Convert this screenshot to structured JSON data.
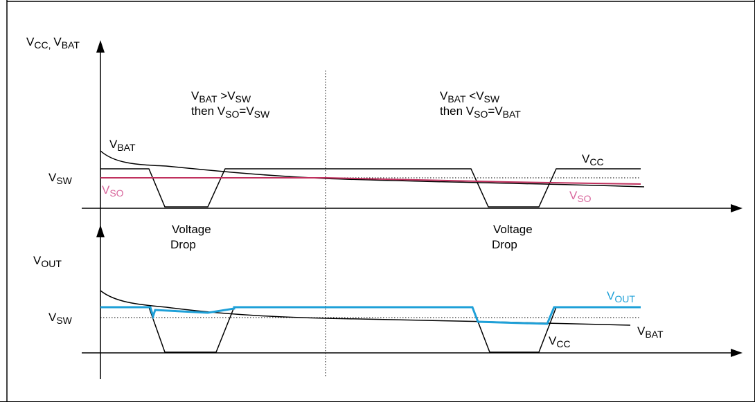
{
  "colors": {
    "axis": "#000000",
    "vso_line": "#c0305e",
    "vso_label": "#d8669c",
    "vout_line": "#1ea0d8",
    "reference_dotted": "#000000"
  },
  "top_panel": {
    "y_axis_label_parts": [
      "V",
      "CC, ",
      "V",
      "BAT"
    ],
    "vsw_label": [
      "V",
      "SW"
    ],
    "vbat_label": [
      "V",
      "BAT"
    ],
    "vcc_label": [
      "V",
      "CC"
    ],
    "vso_label_left": [
      "V",
      "SO"
    ],
    "vso_label_right": [
      "V",
      "SO"
    ],
    "annotation_left": {
      "line1": [
        "V",
        "BAT",
        " >V",
        "SW"
      ],
      "line2": [
        "then V",
        "SO",
        "=V",
        "SW"
      ]
    },
    "annotation_right": {
      "line1": [
        "V",
        "BAT",
        " <V",
        "SW"
      ],
      "line2": [
        "then V",
        "SO",
        "=V",
        "BAT"
      ]
    },
    "drop_label_left": [
      "Voltage",
      "Drop"
    ],
    "drop_label_right": [
      "Voltage",
      "Drop"
    ]
  },
  "bottom_panel": {
    "y_axis_label": [
      "V",
      "OUT"
    ],
    "vsw_label": [
      "V",
      "SW"
    ],
    "vout_label": [
      "V",
      "OUT"
    ],
    "vbat_label": [
      "V",
      "BAT"
    ],
    "vcc_label": [
      "V",
      "CC"
    ]
  }
}
